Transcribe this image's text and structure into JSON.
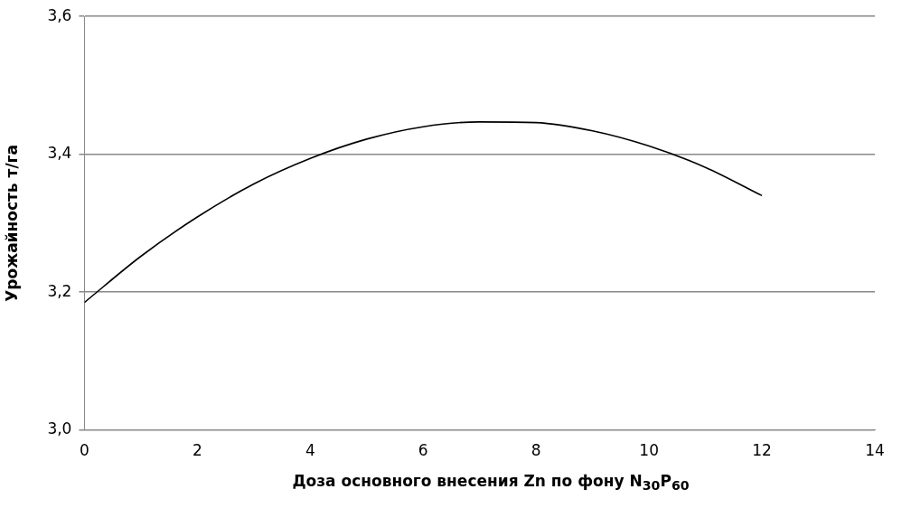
{
  "chart_data": {
    "type": "line",
    "xlabel": "Доза основного внесения Zn по фону N$_{30}$P$_{60}$",
    "ylabel": "Урожайность т/га",
    "x": [
      0,
      1,
      2,
      3,
      4,
      5,
      6,
      7,
      8,
      9,
      10,
      11,
      12
    ],
    "series": [
      {
        "color": "#000000",
        "values": [
          3.185,
          3.252,
          3.309,
          3.357,
          3.394,
          3.422,
          3.44,
          3.447,
          3.446,
          3.434,
          3.412,
          3.381,
          3.34
        ]
      }
    ],
    "xlim": [
      0,
      14
    ],
    "xticks": [
      0,
      2,
      4,
      6,
      8,
      10,
      12,
      14
    ],
    "ylim": [
      3.0,
      3.6
    ],
    "yticks": [
      {
        "value": 3.0,
        "label": "3,0"
      },
      {
        "value": 3.2,
        "label": "3,2"
      },
      {
        "value": 3.4,
        "label": "3,4"
      },
      {
        "value": 3.6,
        "label": "3,6"
      }
    ],
    "grid": "y",
    "legend": false,
    "marker": "none",
    "line_style": "solid"
  }
}
